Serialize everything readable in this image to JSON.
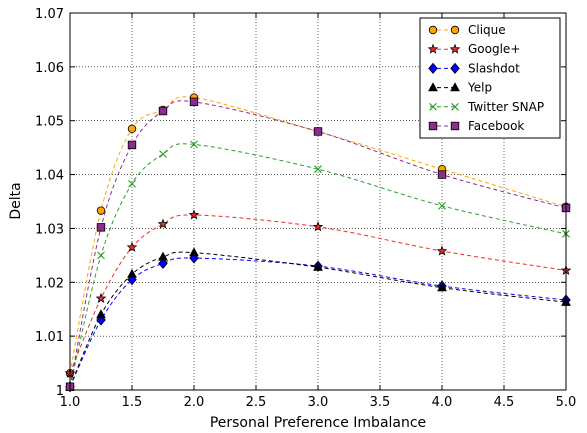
{
  "chart_data": {
    "type": "line",
    "xlabel": "Personal Preference Imbalance",
    "ylabel": "Delta",
    "xlim": [
      1.0,
      5.0
    ],
    "ylim": [
      1.0,
      1.07
    ],
    "xticks": [
      "1.0",
      "1.5",
      "2.0",
      "2.5",
      "3.0",
      "3.5",
      "4.0",
      "4.5",
      "5.0"
    ],
    "yticks": [
      "1",
      "1.01",
      "1.02",
      "1.03",
      "1.04",
      "1.05",
      "1.06",
      "1.07"
    ],
    "grid": true,
    "legend_position": "top-right",
    "x": [
      1.0,
      1.25,
      1.5,
      1.75,
      2.0,
      3.0,
      4.0,
      5.0
    ],
    "series": [
      {
        "name": "Clique",
        "color": "#ffa500",
        "marker": "circle",
        "values": [
          1.0031,
          1.0333,
          1.0485,
          1.052,
          1.0543,
          1.048,
          1.041,
          1.034
        ]
      },
      {
        "name": "Google+",
        "color": "#e8302a",
        "marker": "star",
        "values": [
          1.0031,
          1.017,
          1.0265,
          1.0308,
          1.0325,
          1.0303,
          1.0258,
          1.0222
        ]
      },
      {
        "name": "Slashdot",
        "color": "#0000ff",
        "marker": "diamond",
        "values": [
          1.0006,
          1.013,
          1.0205,
          1.0235,
          1.0245,
          1.023,
          1.0193,
          1.0167
        ]
      },
      {
        "name": "Yelp",
        "color": "#000000",
        "marker": "triangle",
        "values": [
          1.0006,
          1.014,
          1.0215,
          1.0247,
          1.0255,
          1.0228,
          1.019,
          1.0163
        ]
      },
      {
        "name": "Twitter SNAP",
        "color": "#2aa02a",
        "marker": "x",
        "values": [
          1.0006,
          1.025,
          1.0383,
          1.0438,
          1.0456,
          1.041,
          1.0342,
          1.029
        ]
      },
      {
        "name": "Facebook",
        "color": "#8b2d8f",
        "marker": "square",
        "values": [
          1.0006,
          1.0302,
          1.0455,
          1.0518,
          1.0535,
          1.048,
          1.04,
          1.0338
        ]
      }
    ]
  }
}
